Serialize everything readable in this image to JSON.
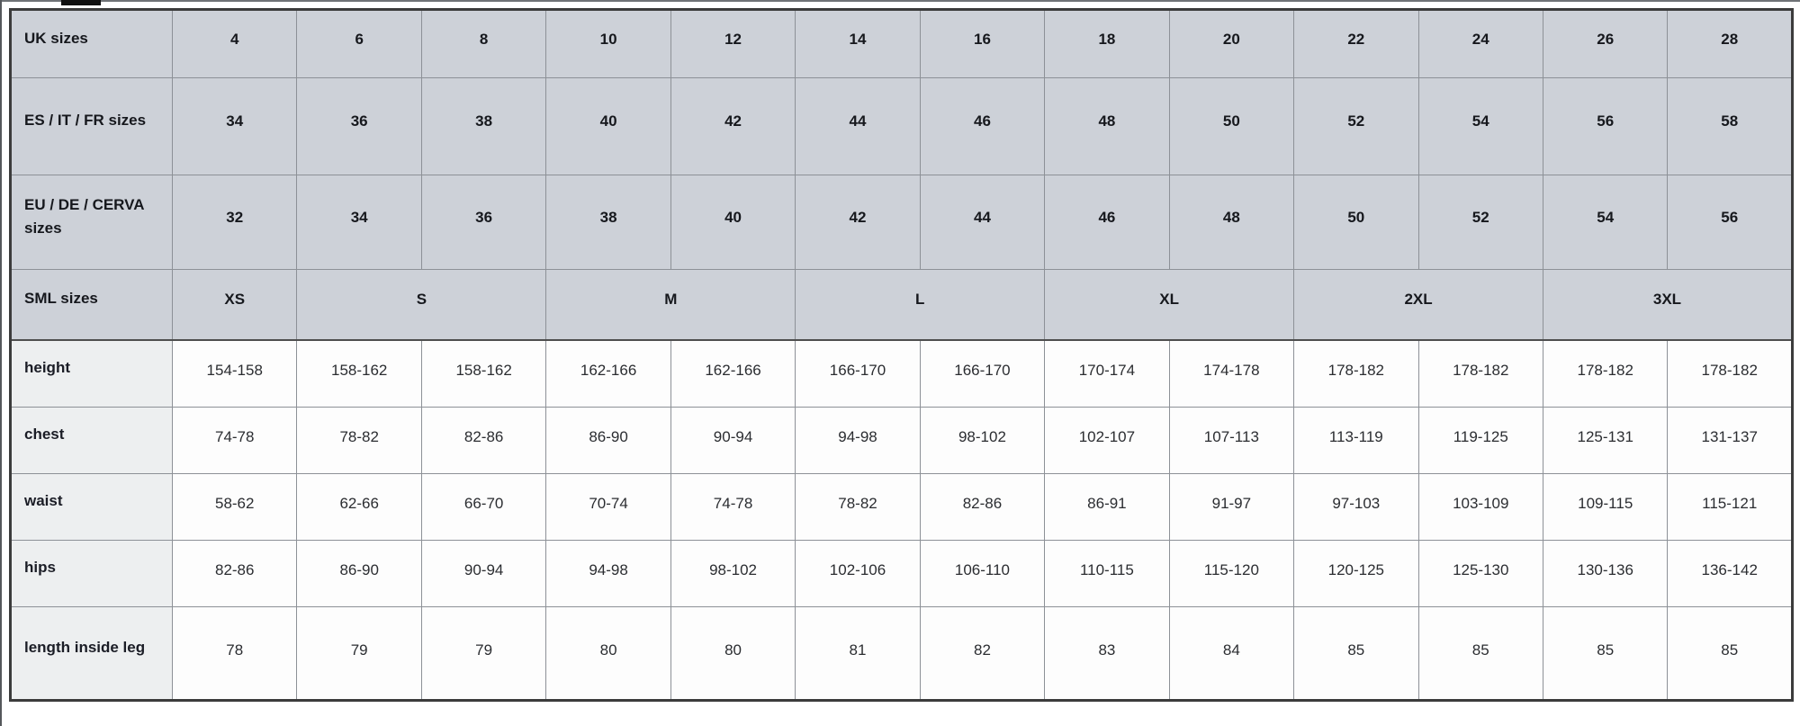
{
  "colors": {
    "header_cell_bg": "#cdd1d8",
    "row_label_cell_bg": "#edeff0",
    "data_cell_bg": "#fdfdfd",
    "inner_border": "#8d9197",
    "outer_border": "#3b3b3b",
    "text": "#1c1e24"
  },
  "size_chart": {
    "data_columns": 13,
    "rows": [
      {
        "type": "header",
        "label": "UK sizes",
        "cells": [
          {
            "text": "4"
          },
          {
            "text": "6"
          },
          {
            "text": "8"
          },
          {
            "text": "10"
          },
          {
            "text": "12"
          },
          {
            "text": "14"
          },
          {
            "text": "16"
          },
          {
            "text": "18"
          },
          {
            "text": "20"
          },
          {
            "text": "22"
          },
          {
            "text": "24"
          },
          {
            "text": "26"
          },
          {
            "text": "28"
          }
        ]
      },
      {
        "type": "header",
        "label": "ES / IT / FR sizes",
        "cells": [
          {
            "text": "34"
          },
          {
            "text": "36"
          },
          {
            "text": "38"
          },
          {
            "text": "40"
          },
          {
            "text": "42"
          },
          {
            "text": "44"
          },
          {
            "text": "46"
          },
          {
            "text": "48"
          },
          {
            "text": "50"
          },
          {
            "text": "52"
          },
          {
            "text": "54"
          },
          {
            "text": "56"
          },
          {
            "text": "58"
          }
        ]
      },
      {
        "type": "header",
        "label": "EU / DE / CERVA sizes",
        "cells": [
          {
            "text": "32"
          },
          {
            "text": "34"
          },
          {
            "text": "36"
          },
          {
            "text": "38"
          },
          {
            "text": "40"
          },
          {
            "text": "42"
          },
          {
            "text": "44"
          },
          {
            "text": "46"
          },
          {
            "text": "48"
          },
          {
            "text": "50"
          },
          {
            "text": "52"
          },
          {
            "text": "54"
          },
          {
            "text": "56"
          }
        ]
      },
      {
        "type": "header",
        "label": "SML sizes",
        "cells": [
          {
            "text": "XS",
            "colspan": 1
          },
          {
            "text": "S",
            "colspan": 2
          },
          {
            "text": "M",
            "colspan": 2
          },
          {
            "text": "L",
            "colspan": 2
          },
          {
            "text": "XL",
            "colspan": 2
          },
          {
            "text": "2XL",
            "colspan": 2
          },
          {
            "text": "3XL",
            "colspan": 2
          }
        ]
      },
      {
        "type": "body",
        "label": "height",
        "cells": [
          {
            "text": "154-158"
          },
          {
            "text": "158-162"
          },
          {
            "text": "158-162"
          },
          {
            "text": "162-166"
          },
          {
            "text": "162-166"
          },
          {
            "text": "166-170"
          },
          {
            "text": "166-170"
          },
          {
            "text": "170-174"
          },
          {
            "text": "174-178"
          },
          {
            "text": "178-182"
          },
          {
            "text": "178-182"
          },
          {
            "text": "178-182"
          },
          {
            "text": "178-182"
          }
        ]
      },
      {
        "type": "body",
        "label": "chest",
        "cells": [
          {
            "text": "74-78"
          },
          {
            "text": "78-82"
          },
          {
            "text": "82-86"
          },
          {
            "text": "86-90"
          },
          {
            "text": "90-94"
          },
          {
            "text": "94-98"
          },
          {
            "text": "98-102"
          },
          {
            "text": "102-107"
          },
          {
            "text": "107-113"
          },
          {
            "text": "113-119"
          },
          {
            "text": "119-125"
          },
          {
            "text": "125-131"
          },
          {
            "text": "131-137"
          }
        ]
      },
      {
        "type": "body",
        "label": "waist",
        "cells": [
          {
            "text": "58-62"
          },
          {
            "text": "62-66"
          },
          {
            "text": "66-70"
          },
          {
            "text": "70-74"
          },
          {
            "text": "74-78"
          },
          {
            "text": "78-82"
          },
          {
            "text": "82-86"
          },
          {
            "text": "86-91"
          },
          {
            "text": "91-97"
          },
          {
            "text": "97-103"
          },
          {
            "text": "103-109"
          },
          {
            "text": "109-115"
          },
          {
            "text": "115-121"
          }
        ]
      },
      {
        "type": "body",
        "label": "hips",
        "cells": [
          {
            "text": "82-86"
          },
          {
            "text": "86-90"
          },
          {
            "text": "90-94"
          },
          {
            "text": "94-98"
          },
          {
            "text": "98-102"
          },
          {
            "text": "102-106"
          },
          {
            "text": "106-110"
          },
          {
            "text": "110-115"
          },
          {
            "text": "115-120"
          },
          {
            "text": "120-125"
          },
          {
            "text": "125-130"
          },
          {
            "text": "130-136"
          },
          {
            "text": "136-142"
          }
        ]
      },
      {
        "type": "body",
        "label": "length inside leg",
        "cells": [
          {
            "text": "78"
          },
          {
            "text": "79"
          },
          {
            "text": "79"
          },
          {
            "text": "80"
          },
          {
            "text": "80"
          },
          {
            "text": "81"
          },
          {
            "text": "82"
          },
          {
            "text": "83"
          },
          {
            "text": "84"
          },
          {
            "text": "85"
          },
          {
            "text": "85"
          },
          {
            "text": "85"
          },
          {
            "text": "85"
          }
        ]
      }
    ]
  }
}
